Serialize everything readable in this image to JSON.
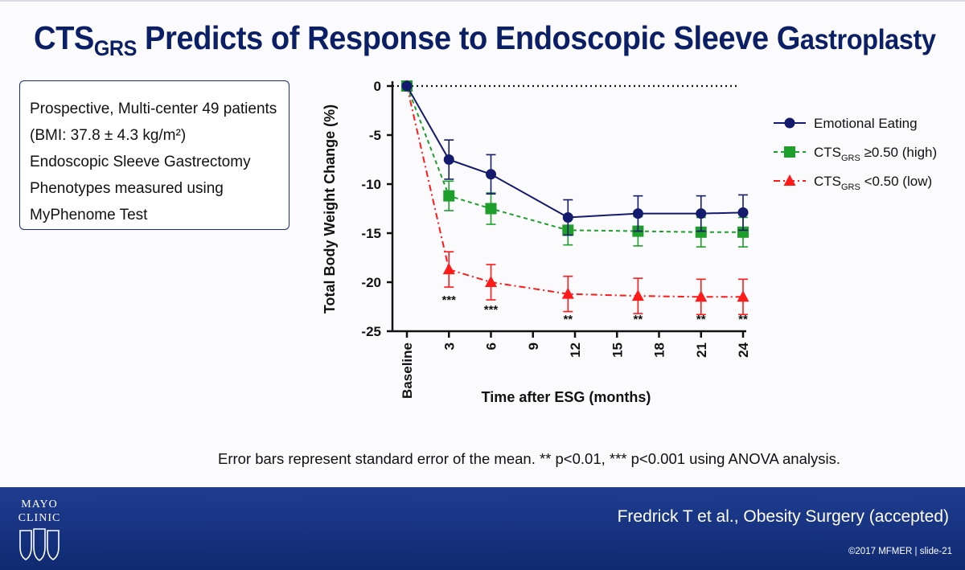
{
  "slide": {
    "title_main": "CTS",
    "title_sub": "GRS",
    "title_rest": " Predicts of Response to Endoscopic Sleeve ",
    "title_g": "G",
    "title_end": "astroplasty",
    "info_lines": [
      "Prospective, Multi-center 49 patients",
      "(BMI: 37.8 ± 4.3 kg/m²)",
      "Endoscopic Sleeve Gastrectomy",
      "Phenotypes measured using",
      "MyPhenome Test"
    ],
    "footnote": "Error bars represent standard error of the mean. ** p<0.01, *** p<0.001 using ANOVA analysis.",
    "citation": "Fredrick T et al., Obesity Surgery (accepted)",
    "copyright": "©2017 MFMER | slide-21",
    "logo_lines": [
      "MAYO",
      "CLINIC"
    ]
  },
  "colors": {
    "title": "#0b1f66",
    "emotional": "#141a6e",
    "high": "#1e9e2a",
    "low": "#ff1a1a",
    "footer": "#16327f"
  },
  "chart_data": {
    "type": "line",
    "xlabel": "Time after ESG (months)",
    "ylabel": "Total Body Weight Change (%)",
    "ylim": [
      -25,
      0
    ],
    "yticks": [
      0,
      -5,
      -10,
      -15,
      -20,
      -25
    ],
    "xlim": [
      0,
      24
    ],
    "xticks": [
      {
        "value": 0,
        "label": "Baseline"
      },
      {
        "value": 3,
        "label": "3"
      },
      {
        "value": 6,
        "label": "6"
      },
      {
        "value": 9,
        "label": "9"
      },
      {
        "value": 12,
        "label": "12"
      },
      {
        "value": 15,
        "label": "15"
      },
      {
        "value": 18,
        "label": "18"
      },
      {
        "value": 21,
        "label": "21"
      },
      {
        "value": 24,
        "label": "24"
      }
    ],
    "reference_line": 0,
    "legend_position": "right",
    "series": [
      {
        "name": "Emotional Eating",
        "name_base": "",
        "name_sub": "",
        "name_suffix": "",
        "marker": "circle",
        "line_style": "solid",
        "color": "#141a6e",
        "x": [
          0,
          3,
          6,
          11.5,
          16.5,
          21,
          24
        ],
        "y": [
          0,
          -7.5,
          -9.0,
          -13.4,
          -13.0,
          -13.0,
          -12.9
        ],
        "err": [
          0,
          2.0,
          2.0,
          1.8,
          1.8,
          1.8,
          1.8
        ]
      },
      {
        "name": "CTSGRS ≥0.50 (high)",
        "name_base": "CTS",
        "name_sub": "GRS",
        "name_suffix": " ≥0.50 (high)",
        "marker": "square",
        "line_style": "dashed",
        "color": "#1e9e2a",
        "x": [
          0,
          3,
          6,
          11.5,
          16.5,
          21,
          24
        ],
        "y": [
          0,
          -11.2,
          -12.5,
          -14.7,
          -14.8,
          -14.9,
          -14.9
        ],
        "err": [
          0,
          1.5,
          1.6,
          1.5,
          1.5,
          1.5,
          1.5
        ]
      },
      {
        "name": "CTSGRS <0.50 (low)",
        "name_base": "CTS",
        "name_sub": "GRS",
        "name_suffix": " <0.50 (low)",
        "marker": "triangle",
        "line_style": "dashdot",
        "color": "#ff1a1a",
        "x": [
          0,
          3,
          6,
          11.5,
          16.5,
          21,
          24
        ],
        "y": [
          0,
          -18.7,
          -20.0,
          -21.2,
          -21.4,
          -21.5,
          -21.5
        ],
        "err": [
          0,
          1.8,
          1.8,
          1.8,
          1.8,
          1.8,
          1.8
        ]
      }
    ],
    "annotations": [
      {
        "x": 3,
        "text": "***"
      },
      {
        "x": 6,
        "text": "***"
      },
      {
        "x": 11.5,
        "text": "**"
      },
      {
        "x": 16.5,
        "text": "**"
      },
      {
        "x": 21,
        "text": "**"
      },
      {
        "x": 24,
        "text": "**"
      }
    ]
  }
}
